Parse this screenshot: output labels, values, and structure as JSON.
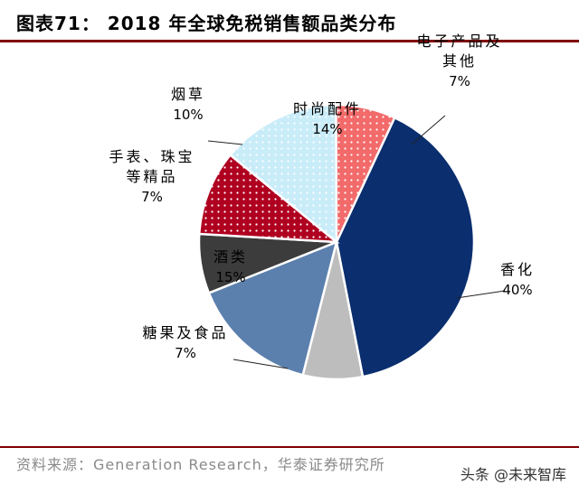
{
  "header": {
    "title": "图表71：   2018 年全球免税销售额品类分布"
  },
  "footer": {
    "source": "资料来源：Generation Research，华泰证券研究所",
    "watermark": "头条 @未来智库"
  },
  "chart_data": {
    "type": "pie",
    "slices": [
      {
        "label": "香化",
        "pct_label": "40%",
        "value": 40,
        "color": "#0a2e6e",
        "pattern": "solid"
      },
      {
        "label": "糖果及食品",
        "pct_label": "7%",
        "value": 7,
        "color": "#bdbdbd",
        "pattern": "solid"
      },
      {
        "label": "酒类",
        "pct_label": "15%",
        "value": 15,
        "color": "#5b80ad",
        "pattern": "solid"
      },
      {
        "label": "手表、珠宝\n等精品",
        "pct_label": "7%",
        "value": 7,
        "color": "#3c3c3c",
        "pattern": "solid"
      },
      {
        "label": "烟草",
        "pct_label": "10%",
        "value": 10,
        "color": "#b00020",
        "pattern": "dots"
      },
      {
        "label": "时尚配件",
        "pct_label": "14%",
        "value": 14,
        "color": "#c9ecf9",
        "pattern": "dots"
      },
      {
        "label": "电子产品及\n其他",
        "pct_label": "7%",
        "value": 7,
        "color": "#f26a6a",
        "pattern": "dots"
      }
    ],
    "start": "12 o'clock",
    "direction": "clockwise-from-right",
    "legend": "none"
  }
}
